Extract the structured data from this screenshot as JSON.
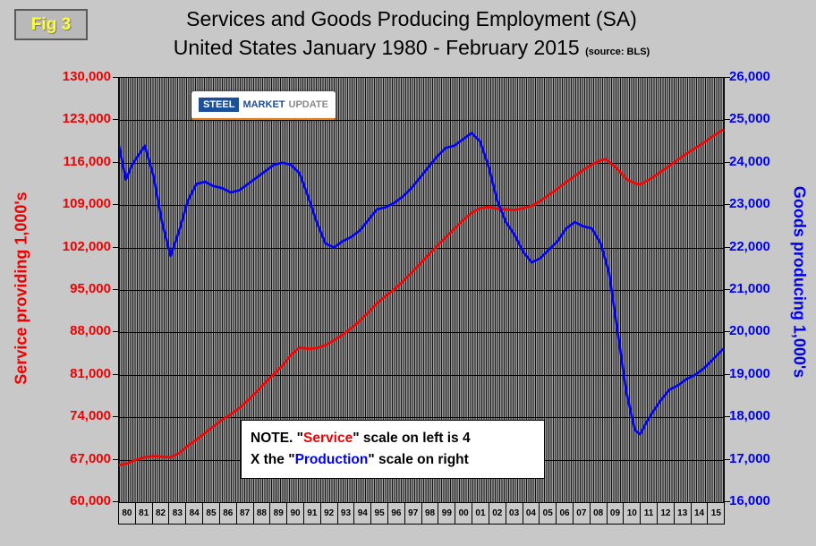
{
  "fig_label": "Fig 3",
  "title": {
    "line1": "Services and Goods Producing Employment (SA)",
    "line2": "United States January 1980 - February 2015",
    "source": "(source: BLS)"
  },
  "logo": {
    "word1": "STEEL",
    "word2": "MARKET",
    "word3": "UPDATE"
  },
  "left_axis": {
    "title": "Service providing 1,000's",
    "color": "#f00000",
    "ticks": [
      "130,000",
      "123,000",
      "116,000",
      "109,000",
      "102,000",
      "95,000",
      "88,000",
      "81,000",
      "74,000",
      "67,000",
      "60,000"
    ]
  },
  "right_axis": {
    "title": "Goods producing 1,000's",
    "color": "#0000f0",
    "ticks": [
      "26,000",
      "25,000",
      "24,000",
      "23,000",
      "22,000",
      "21,000",
      "20,000",
      "19,000",
      "18,000",
      "17,000",
      "16,000"
    ]
  },
  "x_axis": {
    "labels": [
      "80",
      "81",
      "82",
      "83",
      "84",
      "85",
      "86",
      "87",
      "88",
      "89",
      "90",
      "91",
      "92",
      "93",
      "94",
      "95",
      "96",
      "97",
      "98",
      "99",
      "00",
      "01",
      "02",
      "03",
      "04",
      "05",
      "06",
      "07",
      "08",
      "09",
      "10",
      "11",
      "12",
      "13",
      "14",
      "15"
    ]
  },
  "note": {
    "line1_prefix": "NOTE. \"",
    "service_word": "Service",
    "line1_suffix": "\" scale on left  is 4",
    "line2_prefix": "X the \"",
    "production_word": "Production",
    "line2_suffix": "\" scale on right"
  },
  "chart_data": {
    "type": "line",
    "title": "Services and Goods Producing Employment (SA), United States January 1980 - February 2015",
    "x_range": [
      1980,
      2015.17
    ],
    "left_axis_range": [
      60000,
      130000
    ],
    "right_axis_range": [
      16000,
      26000
    ],
    "grid": true,
    "series": [
      {
        "name": "Service providing 1,000's",
        "axis": "left",
        "color": "#ff0000",
        "x": [
          1980,
          1980.5,
          1981,
          1981.5,
          1982,
          1982.5,
          1983,
          1983.5,
          1984,
          1984.5,
          1985,
          1985.5,
          1986,
          1986.5,
          1987,
          1987.5,
          1988,
          1988.5,
          1989,
          1989.5,
          1990,
          1990.5,
          1991,
          1991.5,
          1992,
          1992.5,
          1993,
          1993.5,
          1994,
          1994.5,
          1995,
          1995.5,
          1996,
          1996.5,
          1997,
          1997.5,
          1998,
          1998.5,
          1999,
          1999.5,
          2000,
          2000.5,
          2001,
          2001.5,
          2002,
          2002.5,
          2003,
          2003.5,
          2004,
          2004.5,
          2005,
          2005.5,
          2006,
          2006.5,
          2007,
          2007.5,
          2008,
          2008.3,
          2009,
          2009.5,
          2010,
          2010.3,
          2011,
          2011.5,
          2012,
          2012.5,
          2013,
          2013.5,
          2014,
          2014.5,
          2015.1
        ],
        "values": [
          66100,
          66400,
          67000,
          67400,
          67600,
          67500,
          67400,
          68100,
          69300,
          70300,
          71400,
          72500,
          73600,
          74500,
          75500,
          76800,
          78200,
          79700,
          81100,
          82500,
          84300,
          85500,
          85300,
          85400,
          85900,
          86700,
          87600,
          88700,
          89900,
          91300,
          92800,
          94000,
          95100,
          96400,
          97800,
          99300,
          100800,
          102300,
          103700,
          105100,
          106500,
          107700,
          108500,
          108700,
          108400,
          108300,
          108200,
          108500,
          108900,
          109700,
          110700,
          111700,
          112800,
          113800,
          114800,
          115700,
          116400,
          116600,
          114900,
          113300,
          112600,
          112400,
          113500,
          114500,
          115500,
          116500,
          117500,
          118400,
          119300,
          120300,
          121400
        ]
      },
      {
        "name": "Goods producing 1,000's",
        "axis": "right",
        "color": "#0000ff",
        "x": [
          1980,
          1980.4,
          1980.7,
          1981,
          1981.5,
          1982,
          1982.5,
          1983,
          1983.5,
          1984,
          1984.5,
          1985,
          1985.5,
          1986,
          1986.5,
          1987,
          1987.5,
          1988,
          1988.5,
          1989,
          1989.5,
          1990,
          1990.5,
          1991,
          1991.5,
          1992,
          1992.5,
          1993,
          1993.5,
          1994,
          1994.5,
          1995,
          1995.5,
          1996,
          1996.5,
          1997,
          1997.5,
          1998,
          1998.5,
          1999,
          1999.5,
          2000,
          2000.5,
          2001,
          2001.5,
          2002,
          2002.5,
          2003,
          2003.5,
          2004,
          2004.5,
          2005,
          2005.5,
          2006,
          2006.5,
          2007,
          2007.5,
          2008,
          2008.5,
          2009,
          2009.5,
          2010,
          2010.3,
          2010.7,
          2011,
          2011.5,
          2012,
          2012.5,
          2013,
          2013.5,
          2014,
          2014.5,
          2015.1
        ],
        "values": [
          24400,
          23600,
          23900,
          24100,
          24400,
          23700,
          22600,
          21800,
          22400,
          23100,
          23500,
          23550,
          23450,
          23400,
          23300,
          23350,
          23500,
          23650,
          23800,
          23950,
          24000,
          23950,
          23750,
          23200,
          22600,
          22100,
          22000,
          22150,
          22250,
          22400,
          22650,
          22900,
          22950,
          23050,
          23200,
          23400,
          23650,
          23900,
          24150,
          24350,
          24400,
          24550,
          24700,
          24500,
          23900,
          23100,
          22600,
          22300,
          21900,
          21650,
          21750,
          21950,
          22150,
          22450,
          22600,
          22500,
          22450,
          22100,
          21400,
          20000,
          18600,
          17700,
          17600,
          17900,
          18100,
          18400,
          18650,
          18750,
          18900,
          19000,
          19150,
          19350,
          19600
        ]
      }
    ]
  }
}
